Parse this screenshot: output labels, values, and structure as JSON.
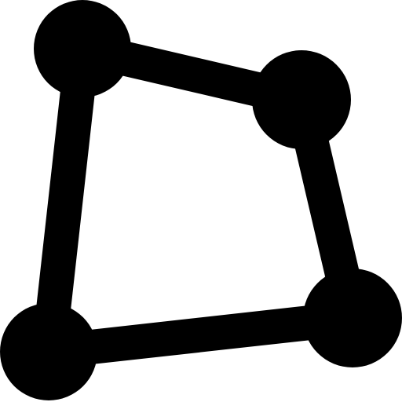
{
  "icon": {
    "name": "polygon-nodes-icon",
    "color": "#000000",
    "background": "#ffffff",
    "node_count": 4,
    "edge_count": 4
  }
}
